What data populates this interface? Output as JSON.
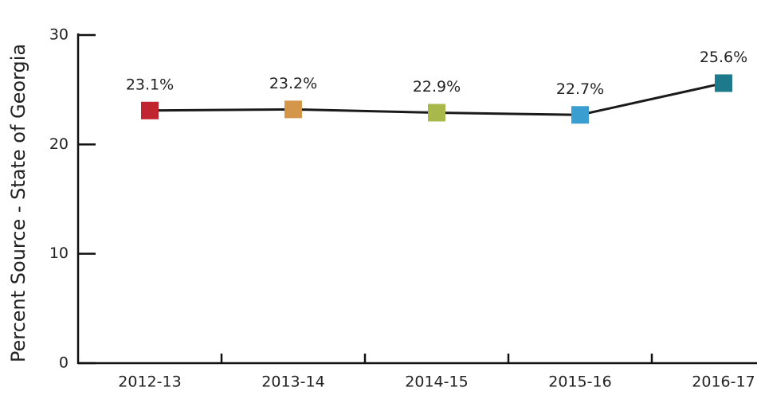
{
  "chart_data": {
    "type": "line",
    "y_axis_label": "Percent Source - State of Georgia",
    "categories": [
      "2012-13",
      "2013-14",
      "2014-15",
      "2015-16",
      "2016-17"
    ],
    "values": [
      23.1,
      23.2,
      22.9,
      22.7,
      25.6
    ],
    "value_labels": [
      "23.1%",
      "23.2%",
      "22.9%",
      "22.7%",
      "25.6%"
    ],
    "line_color": "#1a1a1a",
    "marker_colors": [
      "#c0242f",
      "#d4964a",
      "#a9b84a",
      "#3a9fd0",
      "#1c7a8a"
    ],
    "ylim": [
      0,
      30
    ],
    "yticks": [
      0,
      10,
      20,
      30
    ],
    "grid": false
  }
}
